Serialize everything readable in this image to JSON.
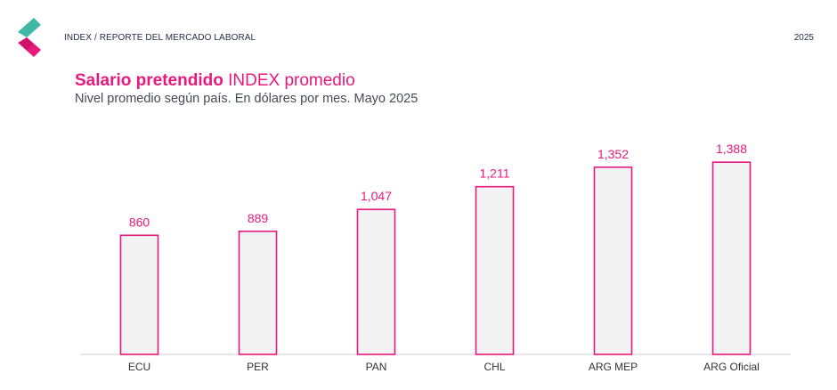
{
  "header": {
    "breadcrumb": "INDEX / REPORTE DEL MERCADO LABORAL",
    "year": "2025"
  },
  "colors": {
    "accent": "#e8197d",
    "logo_teal": "#3fb8a6",
    "bar_fill": "#f3f3f4"
  },
  "chart_data": {
    "type": "bar",
    "title_bold": "Salario pretendido",
    "title_rest": "INDEX promedio",
    "subtitle": "Nivel promedio según país. En dólares por mes. Mayo 2025",
    "categories": [
      "ECU",
      "PER",
      "PAN",
      "CHL",
      "ARG MEP",
      "ARG Oficial"
    ],
    "values": [
      860,
      889,
      1047,
      1211,
      1352,
      1388
    ],
    "value_labels": [
      "860",
      "889",
      "1,047",
      "1,211",
      "1,352",
      "1,388"
    ],
    "ylim": [
      0,
      1700
    ],
    "grid": false,
    "legend": "none"
  }
}
